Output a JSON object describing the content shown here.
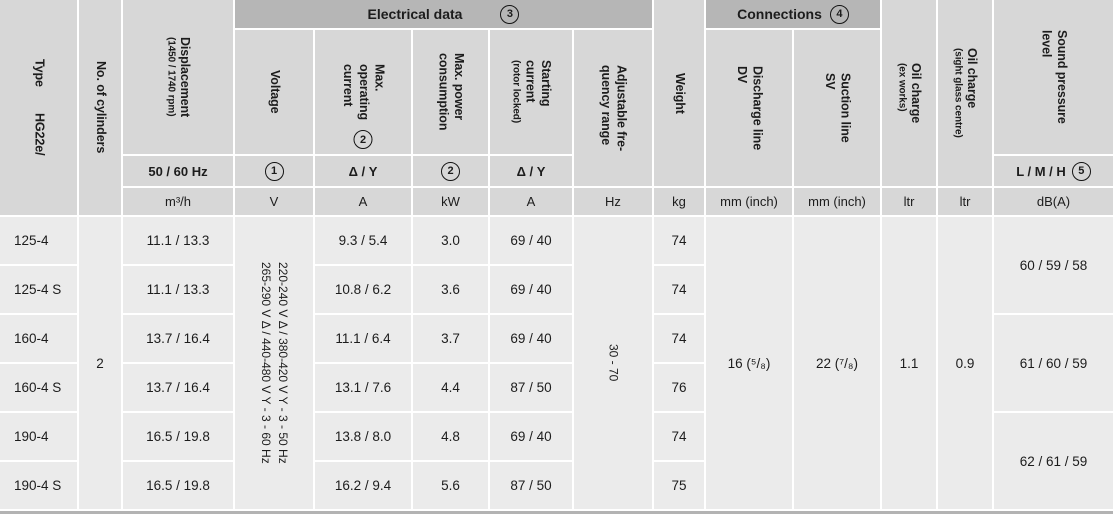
{
  "header": {
    "type": {
      "label": "Type",
      "series": "HG22e/"
    },
    "cylinders": {
      "label": "No. of cylinders"
    },
    "displacement": {
      "label": "Displacement",
      "sublabel": "(1450 / 1740 rpm)",
      "freq": "50 / 60 Hz",
      "unit": "m³/h"
    },
    "electrical": {
      "group": "Electrical data",
      "note": "3",
      "voltage": {
        "label": "Voltage",
        "note": "1",
        "unit": "V"
      },
      "operating_current": {
        "label": "Max.\noperating\ncurrent",
        "note": "2",
        "phase": "Δ / Y",
        "unit": "A"
      },
      "power": {
        "label": "Max. power\nconsumption",
        "note": "2",
        "unit": "kW"
      },
      "starting_current": {
        "label": "Starting\ncurrent",
        "sublabel": "(rotor locked)",
        "phase": "Δ / Y",
        "unit": "A"
      },
      "frequency": {
        "label": "Adjustable fre-\nquency range",
        "unit": "Hz"
      }
    },
    "weight": {
      "label": "Weight",
      "unit": "kg"
    },
    "connections": {
      "group": "Connections",
      "note": "4",
      "discharge": {
        "label": "Discharge line",
        "code": "DV",
        "unit": "mm (inch)"
      },
      "suction": {
        "label": "Suction line",
        "code": "SV",
        "unit": "mm (inch)"
      }
    },
    "oil_ex_works": {
      "label": "Oil charge",
      "sublabel": "(ex works)",
      "unit": "ltr"
    },
    "oil_sight_glass": {
      "label": "Oil charge",
      "sublabel": "(sight glass centre)",
      "unit": "ltr"
    },
    "sound": {
      "label": "Sound pressure\nlevel",
      "levels": "L / M / H",
      "note": "5",
      "unit": "dB(A)"
    }
  },
  "body": {
    "cylinders": "2",
    "voltage_lines": [
      "220-240 V Δ / 380-420 V Y - 3 - 50 Hz",
      "265-290 V Δ / 440-480 V Y - 3 - 60 Hz"
    ],
    "frequency_range": "30 - 70",
    "discharge": "16 (⁵/₈)",
    "suction": "22 (⁷/₈)",
    "oil_ex_works": "1.1",
    "oil_sight_glass": "0.9",
    "sound_levels": [
      "60 / 59 / 58",
      "61 / 60 / 59",
      "62 / 61 / 59"
    ],
    "rows": [
      {
        "type": "125-4",
        "displacement": "11.1 / 13.3",
        "operating_current": "9.3 / 5.4",
        "power": "3.0",
        "starting_current": "69 / 40",
        "weight": "74"
      },
      {
        "type": "125-4 S",
        "displacement": "11.1 / 13.3",
        "operating_current": "10.8 / 6.2",
        "power": "3.6",
        "starting_current": "69 / 40",
        "weight": "74"
      },
      {
        "type": "160-4",
        "displacement": "13.7 / 16.4",
        "operating_current": "11.1 / 6.4",
        "power": "3.7",
        "starting_current": "69 / 40",
        "weight": "74"
      },
      {
        "type": "160-4 S",
        "displacement": "13.7 / 16.4",
        "operating_current": "13.1 / 7.6",
        "power": "4.4",
        "starting_current": "87 / 50",
        "weight": "76"
      },
      {
        "type": "190-4",
        "displacement": "16.5 / 19.8",
        "operating_current": "13.8 / 8.0",
        "power": "4.8",
        "starting_current": "69 / 40",
        "weight": "74"
      },
      {
        "type": "190-4 S",
        "displacement": "16.5 / 19.8",
        "operating_current": "16.2 / 9.4",
        "power": "5.6",
        "starting_current": "87 / 50",
        "weight": "75"
      }
    ]
  }
}
